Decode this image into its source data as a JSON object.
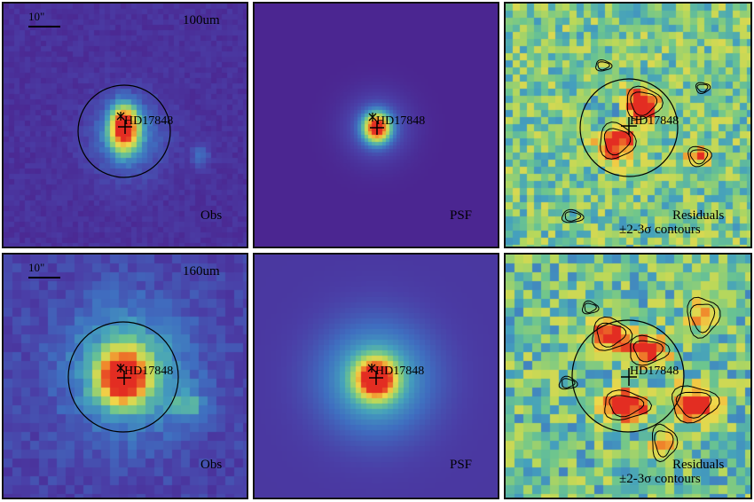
{
  "source_label": "HD17848",
  "panels": [
    {
      "id": "p100-obs",
      "row": 0,
      "col": 0,
      "kind": "obs",
      "band": "100um",
      "scalebar": "10\"",
      "corner_label": "Obs",
      "label_lines": []
    },
    {
      "id": "p100-psf",
      "row": 0,
      "col": 1,
      "kind": "psf",
      "band": "",
      "scalebar": "",
      "corner_label": "PSF",
      "label_lines": []
    },
    {
      "id": "p100-res",
      "row": 0,
      "col": 2,
      "kind": "res",
      "band": "",
      "scalebar": "",
      "corner_label": "",
      "label_lines": [
        "Residuals",
        "±2-3σ contours"
      ]
    },
    {
      "id": "p160-obs",
      "row": 1,
      "col": 0,
      "kind": "obs",
      "band": "160um",
      "scalebar": "10\"",
      "corner_label": "Obs",
      "label_lines": []
    },
    {
      "id": "p160-psf",
      "row": 1,
      "col": 1,
      "kind": "psf",
      "band": "",
      "scalebar": "",
      "corner_label": "PSF",
      "label_lines": []
    },
    {
      "id": "p160-res",
      "row": 1,
      "col": 2,
      "kind": "res",
      "band": "",
      "scalebar": "",
      "corner_label": "",
      "label_lines": [
        "Residuals",
        "±2-3σ contours"
      ]
    }
  ],
  "colors": {
    "background": "#5a2a8f",
    "colormap": [
      "#4b1a86",
      "#4a3fa7",
      "#3f6fc0",
      "#44a0bd",
      "#6cc58f",
      "#b9d85a",
      "#f1d84a",
      "#f08b2c",
      "#e32d22"
    ]
  }
}
